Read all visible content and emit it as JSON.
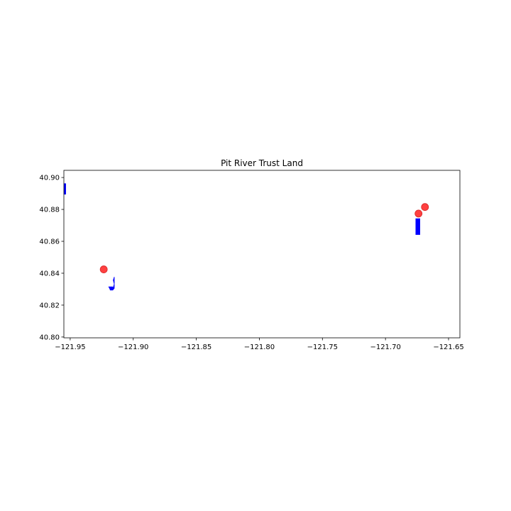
{
  "chart_data": {
    "type": "scatter",
    "title": "Pit River Trust Land",
    "xlabel": "",
    "ylabel": "",
    "xlim": [
      -121.955,
      -121.641
    ],
    "ylim": [
      40.7995,
      40.9045
    ],
    "x_ticks": [
      -121.95,
      -121.9,
      -121.85,
      -121.8,
      -121.75,
      -121.7,
      -121.65
    ],
    "x_tick_labels": [
      "−121.95",
      "−121.90",
      "−121.85",
      "−121.80",
      "−121.75",
      "−121.70",
      "−121.65"
    ],
    "y_ticks": [
      40.8,
      40.82,
      40.84,
      40.86,
      40.88,
      40.9
    ],
    "y_tick_labels": [
      "40.80",
      "40.82",
      "40.84",
      "40.86",
      "40.88",
      "40.90"
    ],
    "grid": false,
    "series": [
      {
        "kind": "polygons",
        "color": "#0000ff",
        "polygons": [
          [
            [
              -121.955,
              40.8895
            ],
            [
              -121.9535,
              40.8895
            ],
            [
              -121.9535,
              40.8962
            ],
            [
              -121.955,
              40.8962
            ]
          ],
          [
            [
              -121.676,
              40.8642
            ],
            [
              -121.6727,
              40.8642
            ],
            [
              -121.6727,
              40.8742
            ],
            [
              -121.676,
              40.8742
            ]
          ],
          [
            [
              -121.9159,
              40.831
            ],
            [
              -121.9151,
              40.8333
            ],
            [
              -121.9159,
              40.8356
            ],
            [
              -121.9152,
              40.8374
            ],
            [
              -121.915,
              40.8377
            ],
            [
              -121.915,
              40.8305
            ],
            [
              -121.9162,
              40.8294
            ],
            [
              -121.9183,
              40.8294
            ],
            [
              -121.9185,
              40.83
            ],
            [
              -121.9195,
              40.8315
            ],
            [
              -121.9165,
              40.8315
            ]
          ]
        ]
      },
      {
        "kind": "points",
        "color": "#ff0000",
        "points": [
          {
            "x": -121.9234,
            "y": 40.8424
          },
          {
            "x": -121.6738,
            "y": 40.8774
          },
          {
            "x": -121.6687,
            "y": 40.8815
          }
        ]
      }
    ]
  }
}
